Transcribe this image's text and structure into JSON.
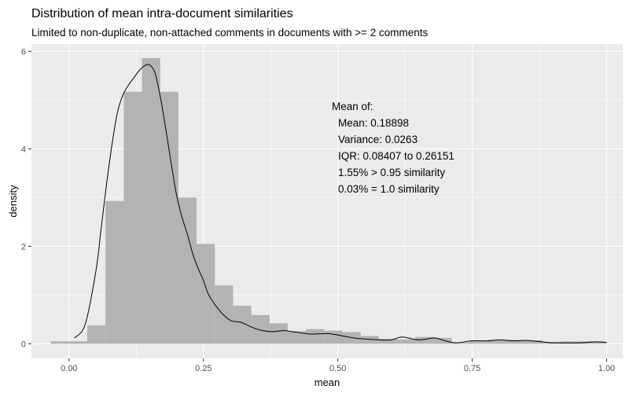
{
  "chart_data": {
    "type": "histogram",
    "title": "Distribution of mean intra-document similarities",
    "subtitle": "Limited to non-duplicate, non-attached comments in documents with >= 2 comments",
    "xlabel": "mean",
    "ylabel": "density",
    "xlim": [
      -0.07,
      1.03
    ],
    "ylim": [
      -0.3,
      6.15
    ],
    "x_ticks": [
      0.0,
      0.25,
      0.5,
      0.75,
      1.0
    ],
    "x_tick_labels": [
      "0.00",
      "0.25",
      "0.50",
      "0.75",
      "1.00"
    ],
    "y_ticks": [
      0,
      2,
      4,
      6
    ],
    "y_tick_labels": [
      "0",
      "2",
      "4",
      "6"
    ],
    "grid": true,
    "legend": "none",
    "colors": {
      "panel_background": "#ebebeb",
      "grid_major": "#ffffff",
      "bar_fill": "#b3b3b3",
      "density_line": "#000000"
    },
    "histogram": {
      "bin_width": 0.0339,
      "bins": [
        {
          "x0": -0.0339,
          "x1": 0.0,
          "density": 0.05
        },
        {
          "x0": 0.0,
          "x1": 0.0339,
          "density": 0.05
        },
        {
          "x0": 0.0339,
          "x1": 0.0678,
          "density": 0.38
        },
        {
          "x0": 0.0678,
          "x1": 0.1017,
          "density": 2.93
        },
        {
          "x0": 0.1017,
          "x1": 0.1356,
          "density": 5.17
        },
        {
          "x0": 0.1356,
          "x1": 0.1695,
          "density": 5.86
        },
        {
          "x0": 0.1695,
          "x1": 0.2034,
          "density": 5.17
        },
        {
          "x0": 0.2034,
          "x1": 0.2373,
          "density": 3.0
        },
        {
          "x0": 0.2373,
          "x1": 0.2712,
          "density": 2.05
        },
        {
          "x0": 0.2712,
          "x1": 0.3051,
          "density": 1.2
        },
        {
          "x0": 0.3051,
          "x1": 0.339,
          "density": 0.78
        },
        {
          "x0": 0.339,
          "x1": 0.3729,
          "density": 0.59
        },
        {
          "x0": 0.3729,
          "x1": 0.4068,
          "density": 0.42
        },
        {
          "x0": 0.4068,
          "x1": 0.4407,
          "density": 0.26
        },
        {
          "x0": 0.4407,
          "x1": 0.4746,
          "density": 0.3
        },
        {
          "x0": 0.4746,
          "x1": 0.5085,
          "density": 0.27
        },
        {
          "x0": 0.5085,
          "x1": 0.5424,
          "density": 0.24
        },
        {
          "x0": 0.5424,
          "x1": 0.5763,
          "density": 0.16
        },
        {
          "x0": 0.5763,
          "x1": 0.6102,
          "density": 0.1
        },
        {
          "x0": 0.6102,
          "x1": 0.6441,
          "density": 0.09
        },
        {
          "x0": 0.6441,
          "x1": 0.678,
          "density": 0.14
        },
        {
          "x0": 0.678,
          "x1": 0.7119,
          "density": 0.12
        },
        {
          "x0": 0.7119,
          "x1": 0.7458,
          "density": 0.03
        },
        {
          "x0": 0.7458,
          "x1": 0.7797,
          "density": 0.07
        },
        {
          "x0": 0.7797,
          "x1": 0.8136,
          "density": 0.08
        },
        {
          "x0": 0.8136,
          "x1": 0.8475,
          "density": 0.08
        },
        {
          "x0": 0.8475,
          "x1": 0.8814,
          "density": 0.07
        },
        {
          "x0": 0.8814,
          "x1": 0.9153,
          "density": 0.04
        },
        {
          "x0": 0.9153,
          "x1": 0.9492,
          "density": 0.05
        },
        {
          "x0": 0.9492,
          "x1": 0.9831,
          "density": 0.05
        },
        {
          "x0": 0.9831,
          "x1": 1.0,
          "density": 0.04
        }
      ]
    },
    "density_curve": {
      "x": [
        0.01,
        0.03,
        0.05,
        0.06,
        0.07,
        0.08,
        0.09,
        0.1,
        0.11,
        0.12,
        0.13,
        0.14,
        0.15,
        0.16,
        0.17,
        0.18,
        0.19,
        0.2,
        0.21,
        0.22,
        0.23,
        0.24,
        0.25,
        0.26,
        0.28,
        0.3,
        0.32,
        0.34,
        0.36,
        0.38,
        0.4,
        0.42,
        0.45,
        0.48,
        0.5,
        0.53,
        0.55,
        0.58,
        0.6,
        0.62,
        0.65,
        0.68,
        0.7,
        0.72,
        0.75,
        0.78,
        0.8,
        0.83,
        0.85,
        0.88,
        0.9,
        0.93,
        0.95,
        0.98,
        1.0
      ],
      "y": [
        0.12,
        0.4,
        1.5,
        2.4,
        3.3,
        4.1,
        4.75,
        5.1,
        5.3,
        5.45,
        5.6,
        5.7,
        5.72,
        5.55,
        5.05,
        4.4,
        3.7,
        3.05,
        2.6,
        2.25,
        1.85,
        1.55,
        1.3,
        1.0,
        0.68,
        0.48,
        0.44,
        0.34,
        0.27,
        0.25,
        0.27,
        0.24,
        0.2,
        0.21,
        0.18,
        0.12,
        0.1,
        0.08,
        0.08,
        0.14,
        0.08,
        0.12,
        0.06,
        0.02,
        0.06,
        0.06,
        0.08,
        0.06,
        0.07,
        0.04,
        0.02,
        0.02,
        0.02,
        0.04,
        0.03
      ]
    },
    "annotation": {
      "lines": [
        "Mean of:",
        "Mean: 0.18898",
        "Variance: 0.0263",
        "IQR: 0.08407 to 0.26151",
        "1.55% > 0.95 similarity",
        "0.03% = 1.0 similarity"
      ]
    }
  }
}
